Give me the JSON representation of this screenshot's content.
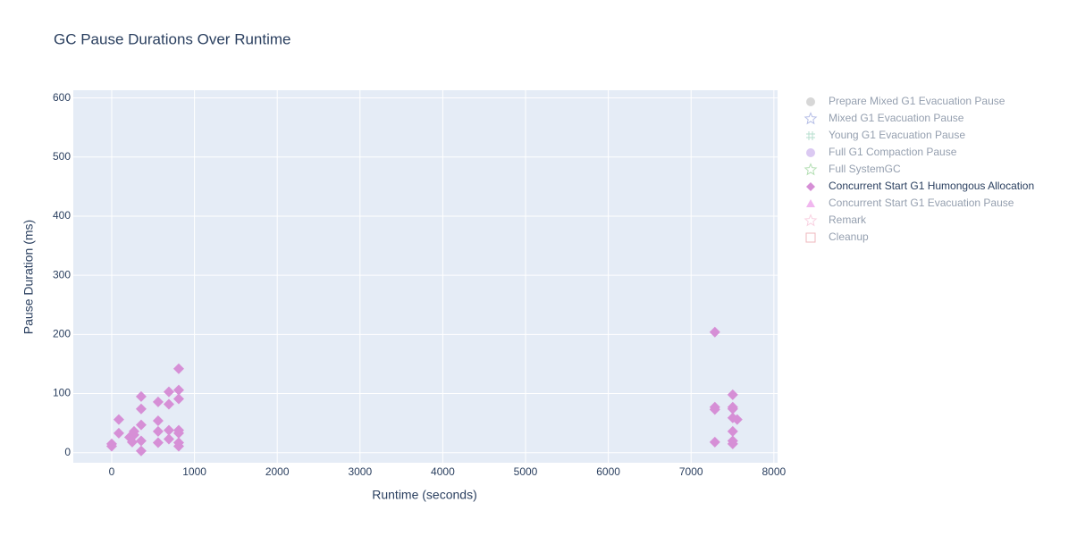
{
  "chart_data": {
    "type": "scatter",
    "title": "GC Pause Durations Over Runtime",
    "x_label": "Runtime (seconds)",
    "y_label": "Pause Duration (ms)",
    "xlim": [
      -464,
      8045
    ],
    "ylim": [
      -17,
      613
    ],
    "xticks": [
      0,
      1000,
      2000,
      3000,
      4000,
      5000,
      6000,
      7000,
      8000
    ],
    "yticks": [
      0,
      100,
      200,
      300,
      400,
      500,
      600
    ],
    "grid": true,
    "series": [
      {
        "name": "Prepare Mixed G1 Evacuation Pause",
        "color": "#b0b0b0",
        "symbol": "circle",
        "visible": "legendonly"
      },
      {
        "name": "Mixed G1 Evacuation Pause",
        "color": "#6f7fcf",
        "symbol": "star-open",
        "visible": "legendonly"
      },
      {
        "name": "Young G1 Evacuation Pause",
        "color": "#6fbf9f",
        "symbol": "hash",
        "visible": "legendonly"
      },
      {
        "name": "Full G1 Compaction Pause",
        "color": "#b794e6",
        "symbol": "circle",
        "visible": "legendonly"
      },
      {
        "name": "Full SystemGC",
        "color": "#6cbf6c",
        "symbol": "star-open",
        "visible": "legendonly"
      },
      {
        "name": "Concurrent Start G1 Humongous Allocation",
        "color": "#d68fd6",
        "symbol": "diamond",
        "visible": true,
        "x": [
          0,
          0,
          86,
          86,
          216,
          270,
          248,
          270,
          356,
          356,
          356,
          356,
          356,
          561,
          561,
          561,
          561,
          691,
          691,
          691,
          691,
          810,
          810,
          810,
          810,
          810,
          810,
          810,
          7287,
          7287,
          7287,
          7287,
          7503,
          7503,
          7503,
          7503,
          7557,
          7503,
          7503,
          7503
        ],
        "y": [
          15,
          11,
          56,
          33,
          26,
          30,
          18,
          36,
          95,
          74,
          47,
          20,
          3,
          86,
          54,
          36,
          17,
          103,
          82,
          38,
          23,
          142,
          106,
          91,
          38,
          33,
          17,
          11,
          204,
          77,
          73,
          18,
          98,
          77,
          74,
          59,
          56,
          36,
          20,
          15
        ]
      },
      {
        "name": "Concurrent Start G1 Evacuation Pause",
        "color": "#e46fe0",
        "symbol": "triangle-up",
        "visible": "legendonly"
      },
      {
        "name": "Remark",
        "color": "#f4a6c6",
        "symbol": "star-open",
        "visible": "legendonly"
      },
      {
        "name": "Cleanup",
        "color": "#e0707a",
        "symbol": "square-open",
        "visible": "legendonly"
      }
    ]
  }
}
